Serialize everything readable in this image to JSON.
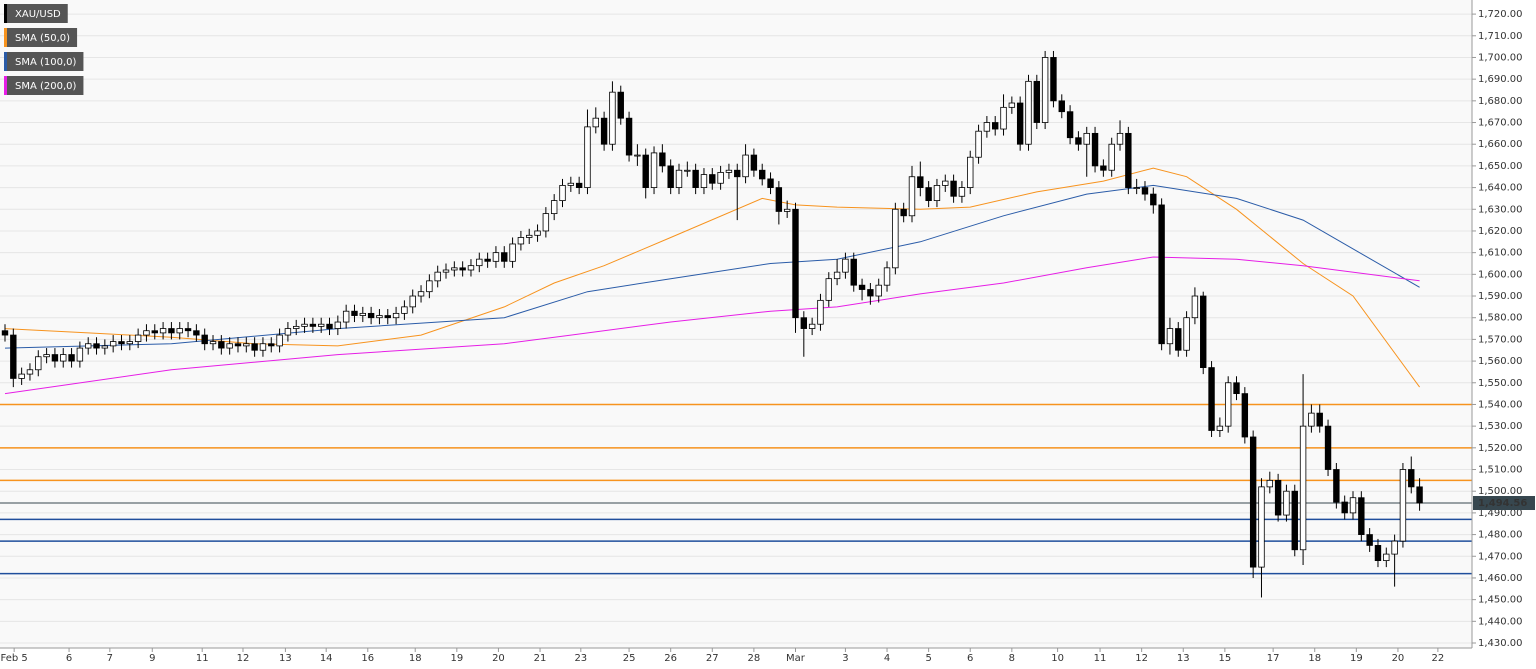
{
  "chart_data": {
    "type": "candlestick",
    "candles": {
      "name": "XAU/USD",
      "up_color": "#ffffff",
      "down_color": "#000000",
      "edge_color": "#000000",
      "open": [
        1574,
        1572,
        1552,
        1554,
        1556,
        1562,
        1563,
        1560,
        1563,
        1560,
        1566,
        1568,
        1566,
        1567,
        1569,
        1568,
        1569,
        1572,
        1574,
        1573,
        1575,
        1573,
        1575,
        1574,
        1572,
        1568,
        1569,
        1566,
        1568,
        1567,
        1568,
        1565,
        1568,
        1567,
        1572,
        1575,
        1576,
        1577,
        1576,
        1577,
        1575,
        1578,
        1583,
        1581,
        1582,
        1580,
        1581,
        1580,
        1582,
        1585,
        1590,
        1592,
        1597,
        1601,
        1602,
        1603,
        1602,
        1604,
        1607,
        1606,
        1610,
        1606,
        1614,
        1617,
        1618,
        1620,
        1628,
        1634,
        1641,
        1642,
        1640,
        1668,
        1672,
        1660,
        1684,
        1672,
        1655,
        1655,
        1640,
        1656,
        1650,
        1640,
        1648,
        1648,
        1640,
        1646,
        1642,
        1647,
        1648,
        1645,
        1655,
        1648,
        1644,
        1640,
        1629,
        1630,
        1580,
        1575,
        1577,
        1588,
        1598,
        1601,
        1607,
        1595,
        1593,
        1590,
        1595,
        1603,
        1630,
        1627,
        1645,
        1640,
        1634,
        1641,
        1643,
        1636,
        1640,
        1654,
        1666,
        1670,
        1667,
        1677,
        1679,
        1660,
        1689,
        1670,
        1700,
        1680,
        1675,
        1663,
        1660,
        1665,
        1650,
        1648,
        1660,
        1665,
        1640,
        1640,
        1637,
        1632,
        1568,
        1575,
        1565,
        1580,
        1590,
        1557,
        1528,
        1530,
        1550,
        1545,
        1525,
        1465,
        1502,
        1505,
        1489,
        1500,
        1473,
        1530,
        1536,
        1530,
        1510,
        1495,
        1490,
        1497,
        1480,
        1475,
        1468,
        1471,
        1477,
        1510,
        1502
      ],
      "high": [
        1577,
        1575,
        1557,
        1559,
        1565,
        1566,
        1566,
        1566,
        1566,
        1569,
        1571,
        1571,
        1570,
        1572,
        1572,
        1572,
        1575,
        1577,
        1577,
        1578,
        1578,
        1578,
        1578,
        1577,
        1575,
        1572,
        1572,
        1571,
        1571,
        1571,
        1571,
        1571,
        1571,
        1575,
        1578,
        1579,
        1580,
        1580,
        1580,
        1580,
        1581,
        1586,
        1586,
        1585,
        1585,
        1584,
        1584,
        1585,
        1588,
        1593,
        1595,
        1600,
        1604,
        1605,
        1606,
        1606,
        1607,
        1610,
        1610,
        1613,
        1613,
        1617,
        1620,
        1621,
        1623,
        1631,
        1637,
        1644,
        1645,
        1645,
        1676,
        1677,
        1675,
        1689,
        1687,
        1675,
        1660,
        1658,
        1659,
        1660,
        1653,
        1651,
        1652,
        1651,
        1649,
        1649,
        1650,
        1651,
        1651,
        1660,
        1658,
        1651,
        1647,
        1643,
        1634,
        1633,
        1583,
        1580,
        1591,
        1601,
        1607,
        1610,
        1610,
        1598,
        1596,
        1598,
        1606,
        1633,
        1633,
        1650,
        1652,
        1643,
        1644,
        1646,
        1646,
        1643,
        1657,
        1669,
        1673,
        1673,
        1683,
        1682,
        1682,
        1692,
        1692,
        1703,
        1703,
        1683,
        1678,
        1666,
        1668,
        1668,
        1653,
        1663,
        1671,
        1668,
        1644,
        1643,
        1640,
        1635,
        1580,
        1578,
        1583,
        1594,
        1592,
        1560,
        1534,
        1553,
        1553,
        1548,
        1528,
        1506,
        1509,
        1508,
        1503,
        1503,
        1554,
        1540,
        1540,
        1533,
        1513,
        1498,
        1500,
        1500,
        1483,
        1478,
        1474,
        1480,
        1513,
        1516,
        1506
      ],
      "low": [
        1569,
        1548,
        1549,
        1551,
        1553,
        1559,
        1557,
        1557,
        1557,
        1557,
        1563,
        1563,
        1563,
        1564,
        1565,
        1565,
        1566,
        1569,
        1570,
        1570,
        1570,
        1570,
        1571,
        1569,
        1565,
        1565,
        1563,
        1563,
        1564,
        1564,
        1562,
        1562,
        1564,
        1564,
        1569,
        1572,
        1573,
        1573,
        1573,
        1572,
        1572,
        1575,
        1578,
        1578,
        1577,
        1577,
        1577,
        1577,
        1579,
        1582,
        1587,
        1589,
        1594,
        1598,
        1599,
        1599,
        1599,
        1601,
        1603,
        1603,
        1603,
        1603,
        1611,
        1614,
        1615,
        1617,
        1625,
        1631,
        1638,
        1637,
        1637,
        1665,
        1657,
        1657,
        1669,
        1652,
        1650,
        1635,
        1637,
        1647,
        1637,
        1637,
        1645,
        1637,
        1637,
        1639,
        1639,
        1644,
        1625,
        1642,
        1645,
        1641,
        1637,
        1623,
        1626,
        1573,
        1562,
        1572,
        1574,
        1585,
        1595,
        1598,
        1592,
        1588,
        1586,
        1587,
        1592,
        1600,
        1624,
        1624,
        1636,
        1631,
        1631,
        1638,
        1633,
        1633,
        1637,
        1651,
        1663,
        1664,
        1664,
        1674,
        1657,
        1657,
        1667,
        1667,
        1677,
        1672,
        1660,
        1657,
        1645,
        1647,
        1645,
        1645,
        1657,
        1637,
        1637,
        1634,
        1628,
        1565,
        1563,
        1562,
        1562,
        1577,
        1554,
        1525,
        1525,
        1527,
        1542,
        1522,
        1460,
        1451,
        1499,
        1486,
        1486,
        1470,
        1466,
        1527,
        1527,
        1507,
        1492,
        1487,
        1487,
        1477,
        1472,
        1465,
        1465,
        1456,
        1474,
        1499,
        1491
      ],
      "close": [
        1572,
        1552,
        1554,
        1556,
        1562,
        1563,
        1560,
        1563,
        1560,
        1566,
        1568,
        1566,
        1567,
        1569,
        1568,
        1569,
        1572,
        1574,
        1573,
        1575,
        1573,
        1575,
        1574,
        1572,
        1568,
        1569,
        1566,
        1568,
        1567,
        1568,
        1565,
        1568,
        1567,
        1572,
        1575,
        1576,
        1577,
        1576,
        1577,
        1575,
        1578,
        1583,
        1581,
        1582,
        1580,
        1581,
        1580,
        1582,
        1585,
        1590,
        1592,
        1597,
        1601,
        1602,
        1603,
        1602,
        1604,
        1607,
        1606,
        1610,
        1606,
        1614,
        1617,
        1618,
        1620,
        1628,
        1634,
        1641,
        1642,
        1640,
        1668,
        1672,
        1660,
        1684,
        1672,
        1655,
        1655,
        1640,
        1656,
        1650,
        1640,
        1648,
        1648,
        1640,
        1646,
        1642,
        1647,
        1648,
        1645,
        1655,
        1648,
        1644,
        1640,
        1629,
        1630,
        1580,
        1575,
        1577,
        1588,
        1598,
        1601,
        1607,
        1595,
        1593,
        1590,
        1595,
        1603,
        1630,
        1627,
        1645,
        1640,
        1634,
        1641,
        1643,
        1636,
        1640,
        1654,
        1666,
        1670,
        1667,
        1677,
        1679,
        1660,
        1689,
        1670,
        1700,
        1680,
        1675,
        1663,
        1660,
        1665,
        1650,
        1648,
        1660,
        1665,
        1640,
        1640,
        1637,
        1632,
        1568,
        1575,
        1565,
        1580,
        1590,
        1557,
        1528,
        1530,
        1550,
        1545,
        1525,
        1465,
        1502,
        1505,
        1489,
        1500,
        1473,
        1530,
        1536,
        1530,
        1510,
        1495,
        1490,
        1497,
        1480,
        1475,
        1468,
        1471,
        1477,
        1510,
        1502,
        1494.56
      ]
    },
    "series": [
      {
        "name": "SMA (50,0)",
        "color": "#f7931e",
        "x": [
          0,
          10,
          20,
          30,
          40,
          50,
          60,
          66,
          72,
          80,
          91,
          95,
          100,
          110,
          116,
          124,
          132,
          138,
          142,
          148,
          156,
          162,
          170
        ],
        "values": [
          1575,
          1573,
          1571,
          1568,
          1567,
          1572,
          1585,
          1596,
          1604,
          1617,
          1635,
          1632,
          1631,
          1630,
          1631,
          1638,
          1643,
          1649,
          1645,
          1630,
          1605,
          1590,
          1548
        ]
      },
      {
        "name": "SMA (100,0)",
        "color": "#2b5ca8",
        "x": [
          0,
          20,
          40,
          60,
          70,
          80,
          92,
          100,
          110,
          120,
          130,
          138,
          148,
          156,
          170
        ],
        "values": [
          1566,
          1568,
          1575,
          1580,
          1592,
          1598,
          1605,
          1607,
          1615,
          1627,
          1637,
          1641,
          1635,
          1625,
          1594
        ]
      },
      {
        "name": "SMA (200,0)",
        "color": "#e61ee6",
        "x": [
          0,
          20,
          40,
          60,
          68,
          80,
          92,
          100,
          110,
          120,
          130,
          138,
          148,
          156,
          170
        ],
        "values": [
          1545,
          1556,
          1563,
          1568,
          1572,
          1578,
          1583,
          1585,
          1591,
          1596,
          1603,
          1608,
          1607,
          1604,
          1597
        ]
      }
    ],
    "levels": [
      {
        "value": 1540,
        "color": "#f7931e"
      },
      {
        "value": 1520,
        "color": "#f7931e"
      },
      {
        "value": 1505,
        "color": "#f7931e"
      },
      {
        "value": 1487,
        "color": "#1f4e9c"
      },
      {
        "value": 1477,
        "color": "#1f4e9c"
      },
      {
        "value": 1462,
        "color": "#1f4e9c"
      }
    ],
    "last_price": {
      "value": 1494.56,
      "label": "1,494.56",
      "color": "#37474f"
    },
    "xlim": [
      -0.6,
      176.3
    ],
    "xticks": [
      {
        "value": 1.1,
        "label": "Feb 5"
      },
      {
        "value": 7.7,
        "label": "6"
      },
      {
        "value": 12.6,
        "label": "7"
      },
      {
        "value": 17.7,
        "label": "9"
      },
      {
        "value": 23.7,
        "label": "11"
      },
      {
        "value": 28.6,
        "label": "12"
      },
      {
        "value": 33.7,
        "label": "13"
      },
      {
        "value": 38.6,
        "label": "14"
      },
      {
        "value": 43.6,
        "label": "16"
      },
      {
        "value": 49.3,
        "label": "18"
      },
      {
        "value": 54.3,
        "label": "19"
      },
      {
        "value": 59.3,
        "label": "20"
      },
      {
        "value": 64.3,
        "label": "21"
      },
      {
        "value": 69.2,
        "label": "23"
      },
      {
        "value": 75,
        "label": "25"
      },
      {
        "value": 80,
        "label": "26"
      },
      {
        "value": 85,
        "label": "27"
      },
      {
        "value": 90,
        "label": "28"
      },
      {
        "value": 95,
        "label": "Mar"
      },
      {
        "value": 101,
        "label": "3"
      },
      {
        "value": 106,
        "label": "4"
      },
      {
        "value": 111,
        "label": "5"
      },
      {
        "value": 116,
        "label": "6"
      },
      {
        "value": 121,
        "label": "8"
      },
      {
        "value": 126.5,
        "label": "10"
      },
      {
        "value": 131.6,
        "label": "11"
      },
      {
        "value": 136.6,
        "label": "12"
      },
      {
        "value": 141.6,
        "label": "13"
      },
      {
        "value": 146.6,
        "label": "15"
      },
      {
        "value": 152.4,
        "label": "17"
      },
      {
        "value": 157.4,
        "label": "18"
      },
      {
        "value": 162.4,
        "label": "19"
      },
      {
        "value": 167.4,
        "label": "20"
      },
      {
        "value": 172.2,
        "label": "22"
      }
    ],
    "ylim": [
      1427.7,
      1726.5
    ],
    "yticks": [
      {
        "value": 1430,
        "label": "1,430.00"
      },
      {
        "value": 1440,
        "label": "1,440.00"
      },
      {
        "value": 1450,
        "label": "1,450.00"
      },
      {
        "value": 1460,
        "label": "1,460.00"
      },
      {
        "value": 1470,
        "label": "1,470.00"
      },
      {
        "value": 1480,
        "label": "1,480.00"
      },
      {
        "value": 1490,
        "label": "1,490.00"
      },
      {
        "value": 1500,
        "label": "1,500.00"
      },
      {
        "value": 1510,
        "label": "1,510.00"
      },
      {
        "value": 1520,
        "label": "1,520.00"
      },
      {
        "value": 1530,
        "label": "1,530.00"
      },
      {
        "value": 1540,
        "label": "1,540.00"
      },
      {
        "value": 1550,
        "label": "1,550.00"
      },
      {
        "value": 1560,
        "label": "1,560.00"
      },
      {
        "value": 1570,
        "label": "1,570.00"
      },
      {
        "value": 1580,
        "label": "1,580.00"
      },
      {
        "value": 1590,
        "label": "1,590.00"
      },
      {
        "value": 1600,
        "label": "1,600.00"
      },
      {
        "value": 1610,
        "label": "1,610.00"
      },
      {
        "value": 1620,
        "label": "1,620.00"
      },
      {
        "value": 1630,
        "label": "1,630.00"
      },
      {
        "value": 1640,
        "label": "1,640.00"
      },
      {
        "value": 1650,
        "label": "1,650.00"
      },
      {
        "value": 1660,
        "label": "1,660.00"
      },
      {
        "value": 1670,
        "label": "1,670.00"
      },
      {
        "value": 1680,
        "label": "1,680.00"
      },
      {
        "value": 1690,
        "label": "1,690.00"
      },
      {
        "value": 1700,
        "label": "1,700.00"
      },
      {
        "value": 1710,
        "label": "1,710.00"
      },
      {
        "value": 1720,
        "label": "1,720.00"
      }
    ],
    "grid": true
  }
}
